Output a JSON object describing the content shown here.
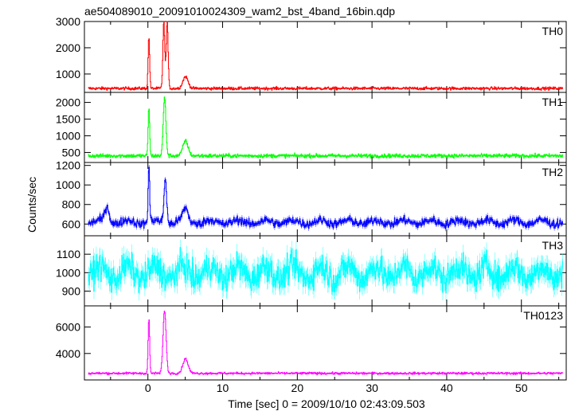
{
  "title": "ae504089010_20091010024309_wam2_bst_4band_16bin.qdp",
  "chart_data": {
    "type": "line",
    "title": "ae504089010_20091010024309_wam2_bst_4band_16bin.qdp",
    "xlabel": "Time [sec] 0 = 2009/10/10 02:43:09.503",
    "ylabel": "Counts/sec",
    "xlim": [
      -8.5,
      56
    ],
    "x_ticks": [
      0,
      10,
      20,
      30,
      40,
      50
    ],
    "x_tick_labels": [
      "0",
      "10",
      "20",
      "30",
      "40",
      "50"
    ],
    "bin_seconds": 0.0625,
    "panels": [
      {
        "name": "TH0",
        "color": "#ff0000",
        "ylim": [
          300,
          3000
        ],
        "y_ticks": [
          1000,
          2000,
          3000
        ],
        "y_tick_labels": [
          "1000",
          "2000",
          "3000"
        ],
        "baseline": 450,
        "noise": 70,
        "features": [
          {
            "t": 0.1,
            "peak": 2400,
            "width": 0.2
          },
          {
            "t": 2.1,
            "peak": 3000,
            "width": 0.25
          },
          {
            "t": 2.55,
            "peak": 3000,
            "width": 0.25
          },
          {
            "t": 5.0,
            "peak": 900,
            "width": 0.7
          }
        ]
      },
      {
        "name": "TH1",
        "color": "#00ff00",
        "ylim": [
          200,
          2300
        ],
        "y_ticks": [
          500,
          1000,
          1500,
          2000
        ],
        "y_tick_labels": [
          "500",
          "1000",
          "1500",
          "2000"
        ],
        "baseline": 400,
        "noise": 70,
        "features": [
          {
            "t": 0.1,
            "peak": 1850,
            "width": 0.2
          },
          {
            "t": 2.2,
            "peak": 2150,
            "width": 0.35
          },
          {
            "t": 5.0,
            "peak": 850,
            "width": 0.7
          }
        ]
      },
      {
        "name": "TH2",
        "color": "#0000ff",
        "ylim": [
          480,
          1230
        ],
        "y_ticks": [
          600,
          800,
          1000,
          1200
        ],
        "y_tick_labels": [
          "600",
          "800",
          "1000",
          "1200"
        ],
        "baseline": 620,
        "noise": 55,
        "features": [
          {
            "t": 0.1,
            "peak": 1180,
            "width": 0.2
          },
          {
            "t": 2.3,
            "peak": 1080,
            "width": 0.35
          },
          {
            "t": -5.5,
            "peak": 780,
            "width": 0.6
          },
          {
            "t": 5.0,
            "peak": 750,
            "width": 0.7
          }
        ]
      },
      {
        "name": "TH3",
        "color": "#00ffff",
        "ylim": [
          820,
          1200
        ],
        "y_ticks": [
          900,
          1000,
          1100
        ],
        "y_tick_labels": [
          "900",
          "1000",
          "1100"
        ],
        "baseline": 1000,
        "noise": 95,
        "features": []
      },
      {
        "name": "TH0123",
        "color": "#ff00ff",
        "ylim": [
          2000,
          7600
        ],
        "y_ticks": [
          4000,
          6000
        ],
        "y_tick_labels": [
          "4000",
          "6000"
        ],
        "baseline": 2500,
        "noise": 110,
        "features": [
          {
            "t": 0.1,
            "peak": 6600,
            "width": 0.2
          },
          {
            "t": 2.2,
            "peak": 7300,
            "width": 0.4
          },
          {
            "t": 5.0,
            "peak": 3600,
            "width": 0.7
          }
        ]
      }
    ]
  }
}
